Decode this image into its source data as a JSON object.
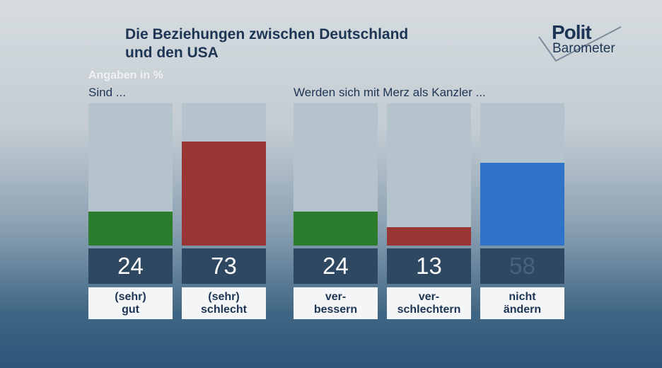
{
  "header": {
    "title_line1": "Die Beziehungen zwischen Deutschland",
    "title_line2": "und den USA",
    "logo_line1": "Polit",
    "logo_line2": "Barometer"
  },
  "note": "Angaben in %",
  "chart_data": [
    {
      "type": "bar",
      "title": "Sind ...",
      "unit": "%",
      "ylim": [
        0,
        100
      ],
      "categories": [
        {
          "line1": "(sehr)",
          "line2": "gut"
        },
        {
          "line1": "(sehr)",
          "line2": "schlecht"
        }
      ],
      "values": [
        24,
        73
      ],
      "display_values": [
        "24",
        "73"
      ],
      "colors": [
        "#2b7d2d",
        "#983535"
      ]
    },
    {
      "type": "bar",
      "title": "Werden sich mit Merz als Kanzler ...",
      "unit": "%",
      "ylim": [
        0,
        100
      ],
      "categories": [
        {
          "line1": "ver-",
          "line2": "bessern"
        },
        {
          "line1": "ver-",
          "line2": "schlechtern"
        },
        {
          "line1": "nicht",
          "line2": "ändern"
        }
      ],
      "values": [
        24,
        13,
        58
      ],
      "display_values": [
        "24",
        "13",
        "58"
      ],
      "colors": [
        "#2b7d2d",
        "#983535",
        "#2f74c9"
      ]
    }
  ]
}
